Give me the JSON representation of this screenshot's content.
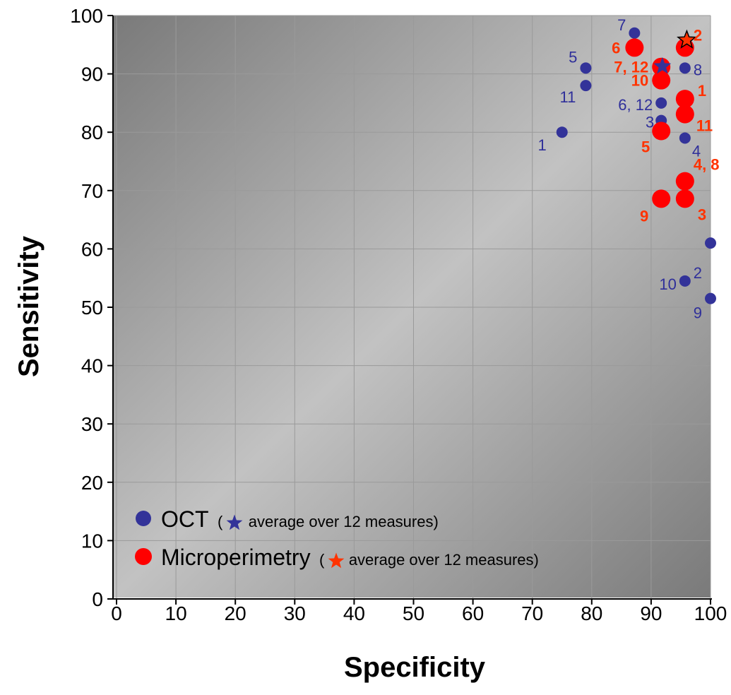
{
  "chart_data": {
    "type": "scatter",
    "xlabel": "Specificity",
    "ylabel": "Sensitivity",
    "xlim": [
      0,
      100
    ],
    "ylim": [
      0,
      100
    ],
    "xticks": [
      "0",
      "10",
      "20",
      "30",
      "40",
      "50",
      "60",
      "70",
      "80",
      "90",
      "100"
    ],
    "yticks": [
      "0",
      "10",
      "20",
      "30",
      "40",
      "50",
      "60",
      "70",
      "80",
      "90",
      "100"
    ],
    "grid": true,
    "legend_position": "bottom-left",
    "series": [
      {
        "name": "OCT",
        "color": "#333399",
        "points": [
          {
            "x": 75,
            "y": 80,
            "label": "1"
          },
          {
            "x": 100,
            "y": 61,
            "label": "2"
          },
          {
            "x": 91.7,
            "y": 82,
            "label": "3"
          },
          {
            "x": 95.7,
            "y": 79,
            "label": "4"
          },
          {
            "x": 79,
            "y": 91,
            "label": "5"
          },
          {
            "x": 91.7,
            "y": 85,
            "label": "6, 12"
          },
          {
            "x": 87.2,
            "y": 97,
            "label": "7"
          },
          {
            "x": 95.7,
            "y": 91,
            "label": "8"
          },
          {
            "x": 100,
            "y": 51.5,
            "label": "9"
          },
          {
            "x": 95.7,
            "y": 54.5,
            "label": "10"
          },
          {
            "x": 79,
            "y": 88,
            "label": "11"
          }
        ],
        "average": {
          "x": 91.9,
          "y": 91.3
        }
      },
      {
        "name": "Microperimetry",
        "color": "#ff0000",
        "points": [
          {
            "x": 95.7,
            "y": 85.7,
            "label": "1"
          },
          {
            "x": 95.7,
            "y": 94.5,
            "label": "2"
          },
          {
            "x": 95.7,
            "y": 68.6,
            "label": "3"
          },
          {
            "x": 95.7,
            "y": 71.6,
            "label": "4, 8"
          },
          {
            "x": 91.7,
            "y": 80.2,
            "label": "5"
          },
          {
            "x": 87.2,
            "y": 94.5,
            "label": "6"
          },
          {
            "x": 91.7,
            "y": 91.2,
            "label": "7, 12"
          },
          {
            "x": 91.7,
            "y": 68.6,
            "label": "9"
          },
          {
            "x": 91.7,
            "y": 88.9,
            "label": "10"
          },
          {
            "x": 95.7,
            "y": 83.1,
            "label": "11"
          }
        ],
        "average": {
          "x": 96,
          "y": 95.8
        }
      }
    ]
  },
  "legend": {
    "oct_name": "OCT",
    "oct_open": "(",
    "oct_note": "average over 12 measures)",
    "micro_name": "Microperimetry",
    "micro_open": "(",
    "micro_note": "average over 12 measures)"
  },
  "colors": {
    "oct": "#333399",
    "oct_label": "#2f2f9a",
    "micro": "#ff0000",
    "micro_label": "#ff3300",
    "micro_star": "#ff3300"
  }
}
